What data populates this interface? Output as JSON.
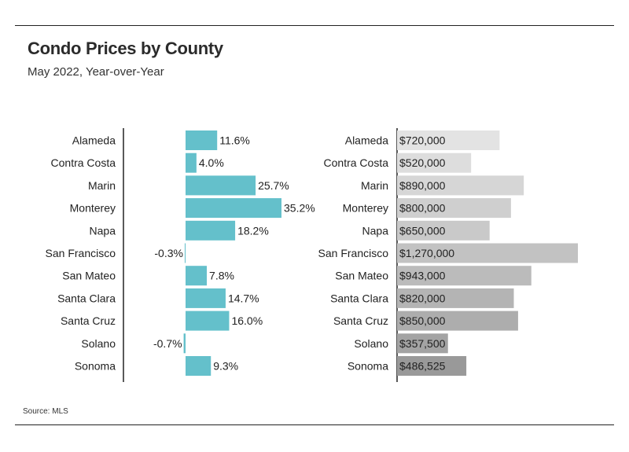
{
  "header": {
    "title": "Condo Prices by County",
    "subtitle": "May 2022, Year-over-Year"
  },
  "footer": {
    "source": "Source:  MLS"
  },
  "chart_data": [
    {
      "type": "bar",
      "orientation": "horizontal",
      "categories": [
        "Alameda",
        "Contra Costa",
        "Marin",
        "Monterey",
        "Napa",
        "San Francisco",
        "San Mateo",
        "Santa Clara",
        "Santa Cruz",
        "Solano",
        "Sonoma"
      ],
      "values": [
        11.6,
        4.0,
        25.7,
        35.2,
        18.2,
        -0.3,
        7.8,
        14.7,
        16.0,
        -0.7,
        9.3
      ],
      "labels": [
        "11.6%",
        "4.0%",
        "25.7%",
        "35.2%",
        "18.2%",
        "-0.3%",
        "7.8%",
        "14.7%",
        "16.0%",
        "-0.7%",
        "9.3%"
      ],
      "color": "#64c0cb",
      "xlim": [
        -1,
        35.2
      ]
    },
    {
      "type": "bar",
      "orientation": "horizontal",
      "categories": [
        "Alameda",
        "Contra Costa",
        "Marin",
        "Monterey",
        "Napa",
        "San Francisco",
        "San Mateo",
        "Santa Clara",
        "Santa Cruz",
        "Solano",
        "Sonoma"
      ],
      "values": [
        720000,
        520000,
        890000,
        800000,
        650000,
        1270000,
        943000,
        820000,
        850000,
        357500,
        486525
      ],
      "labels": [
        "$720,000",
        "$520,000",
        "$890,000",
        "$800,000",
        "$650,000",
        "$1,270,000",
        "$943,000",
        "$820,000",
        "$850,000",
        "$357,500",
        "$486,525"
      ],
      "colors": [
        "#e3e3e3",
        "#dddddd",
        "#d6d6d6",
        "#cfcfcf",
        "#c9c9c9",
        "#c2c2c2",
        "#bbbbbb",
        "#b4b4b4",
        "#adadad",
        "#a3a3a3",
        "#999999"
      ],
      "xlim": [
        0,
        1270000
      ]
    }
  ]
}
